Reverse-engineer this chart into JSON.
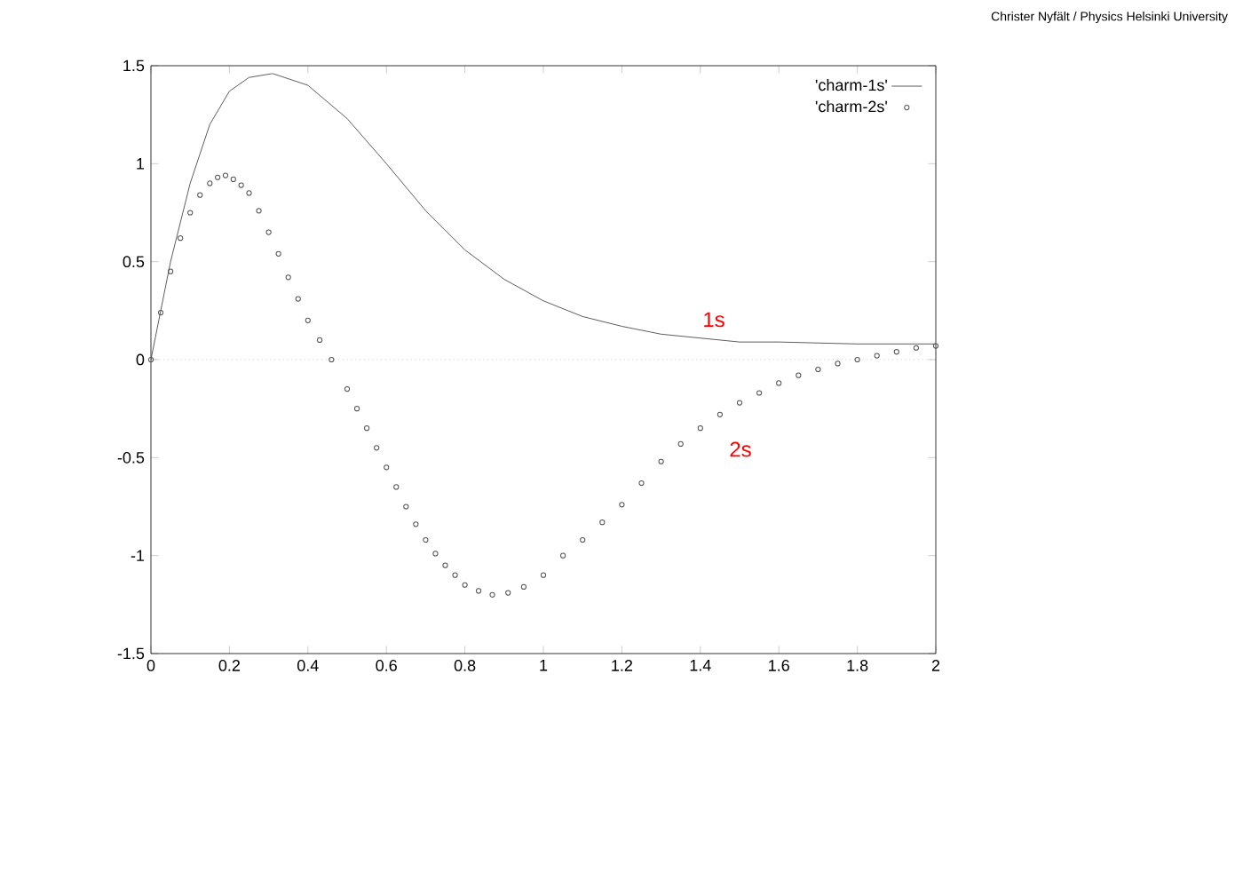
{
  "chart_data": {
    "type": "line",
    "xlim": [
      0,
      2
    ],
    "ylim": [
      -1.5,
      1.5
    ],
    "xticks": [
      0,
      0.2,
      0.4,
      0.6,
      0.8,
      1,
      1.2,
      1.4,
      1.6,
      1.8,
      2
    ],
    "yticks": [
      -1.5,
      -1,
      -0.5,
      0,
      0.5,
      1,
      1.5
    ],
    "grid": false,
    "legend": "top right",
    "series": [
      {
        "name": "'charm-1s'",
        "color": "#333333",
        "marker": "none",
        "x": [
          0,
          0.05,
          0.1,
          0.15,
          0.2,
          0.25,
          0.31,
          0.4,
          0.5,
          0.6,
          0.7,
          0.8,
          0.9,
          1.0,
          1.1,
          1.2,
          1.3,
          1.4,
          1.5,
          1.6,
          1.8,
          2.0
        ],
        "values": [
          0,
          0.5,
          0.9,
          1.2,
          1.37,
          1.44,
          1.46,
          1.4,
          1.23,
          1.0,
          0.76,
          0.56,
          0.41,
          0.3,
          0.22,
          0.17,
          0.13,
          0.11,
          0.09,
          0.09,
          0.08,
          0.08
        ]
      },
      {
        "name": "'charm-2s'",
        "type": "scatter",
        "color": "#555555",
        "marker": "circle",
        "x": [
          0,
          0.025,
          0.05,
          0.075,
          0.1,
          0.125,
          0.15,
          0.17,
          0.19,
          0.21,
          0.23,
          0.25,
          0.275,
          0.3,
          0.325,
          0.35,
          0.375,
          0.4,
          0.43,
          0.46,
          0.5,
          0.525,
          0.55,
          0.575,
          0.6,
          0.625,
          0.65,
          0.675,
          0.7,
          0.725,
          0.75,
          0.775,
          0.8,
          0.835,
          0.87,
          0.91,
          0.95,
          1.0,
          1.05,
          1.1,
          1.15,
          1.2,
          1.25,
          1.3,
          1.35,
          1.4,
          1.45,
          1.5,
          1.55,
          1.6,
          1.65,
          1.7,
          1.75,
          1.8,
          1.85,
          1.9,
          1.95,
          2.0
        ],
        "values": [
          0,
          0.24,
          0.45,
          0.62,
          0.75,
          0.84,
          0.9,
          0.93,
          0.94,
          0.92,
          0.89,
          0.85,
          0.76,
          0.65,
          0.54,
          0.42,
          0.31,
          0.2,
          0.1,
          0,
          -0.15,
          -0.25,
          -0.35,
          -0.45,
          -0.55,
          -0.65,
          -0.75,
          -0.84,
          -0.92,
          -0.99,
          -1.05,
          -1.1,
          -1.15,
          -1.18,
          -1.2,
          -1.19,
          -1.16,
          -1.1,
          -1.0,
          -0.92,
          -0.83,
          -0.74,
          -0.63,
          -0.52,
          -0.43,
          -0.35,
          -0.28,
          -0.22,
          -0.17,
          -0.12,
          -0.08,
          -0.05,
          -0.02,
          0.0,
          0.02,
          0.04,
          0.06,
          0.07
        ]
      }
    ],
    "ref_lines": [
      {
        "axis": "y",
        "value": 0,
        "line_style": "dotted",
        "color": "#888888"
      }
    ],
    "annotations": [
      "1s",
      "2s",
      "Christer Nyfält / Physics Helsinki University"
    ]
  }
}
